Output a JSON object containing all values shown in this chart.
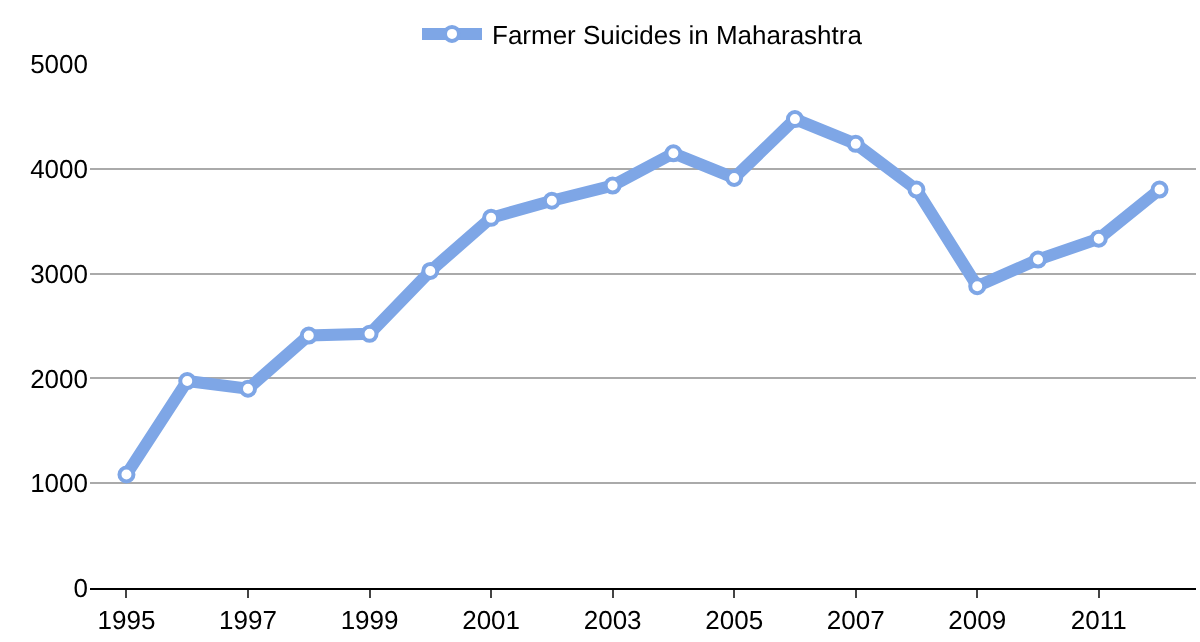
{
  "chart_data": {
    "type": "line",
    "x": [
      1995,
      1996,
      1997,
      1998,
      1999,
      2000,
      2001,
      2002,
      2003,
      2004,
      2005,
      2006,
      2007,
      2008,
      2009,
      2010,
      2011,
      2012
    ],
    "series": [
      {
        "name": "Farmer Suicides in Maharashtra",
        "color": "#7ea6e6",
        "values": [
          1083,
          1975,
          1902,
          2409,
          2425,
          3025,
          3532,
          3695,
          3840,
          4148,
          3913,
          4474,
          4238,
          3802,
          2880,
          3134,
          3333,
          3802
        ]
      }
    ],
    "xlim": [
      1994.4,
      2012.6
    ],
    "xticks": [
      1995,
      1997,
      1999,
      2001,
      2003,
      2005,
      2007,
      2009,
      2011
    ],
    "ylim": [
      0,
      5000
    ],
    "yticks": [
      0,
      1000,
      2000,
      3000,
      4000,
      5000
    ],
    "grid": "y",
    "legend": "top",
    "marker": "circle",
    "line_style": "solid"
  }
}
